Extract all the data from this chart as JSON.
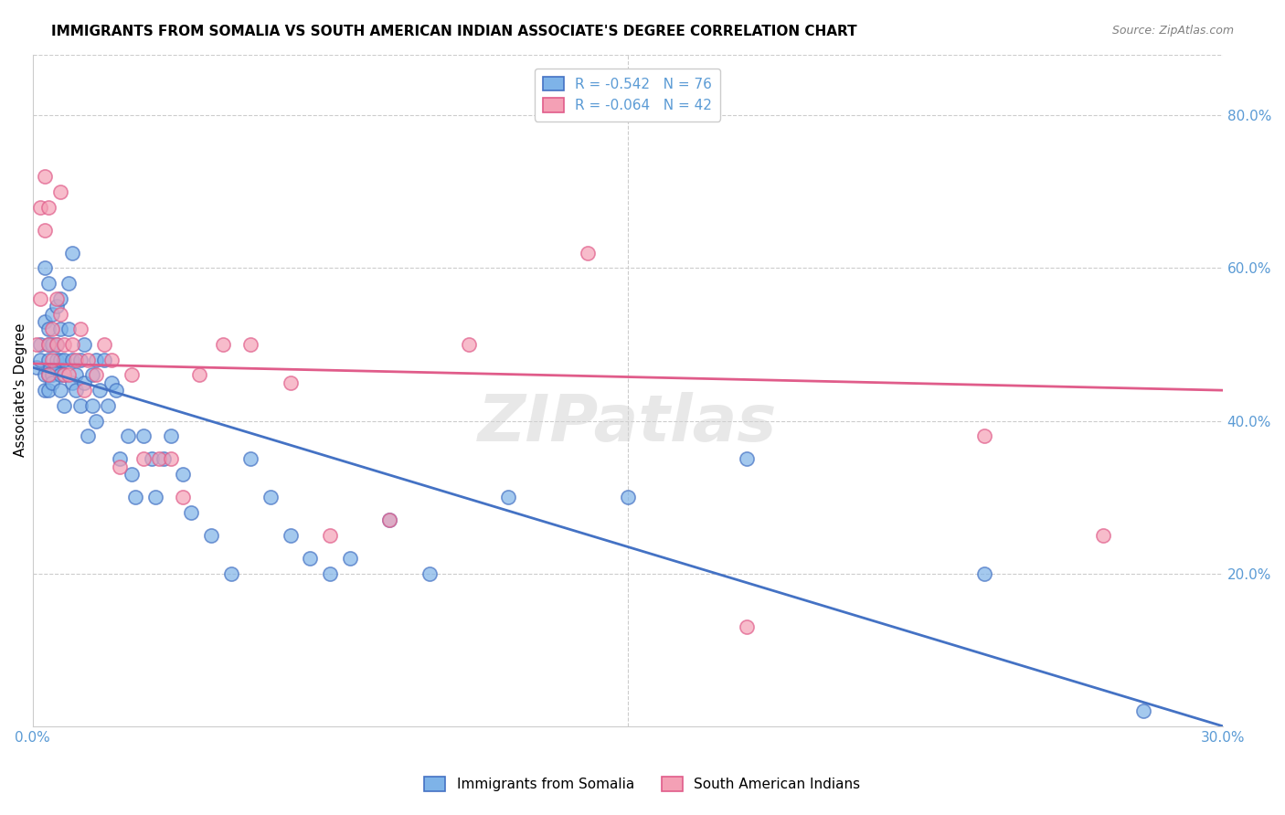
{
  "title": "IMMIGRANTS FROM SOMALIA VS SOUTH AMERICAN INDIAN ASSOCIATE'S DEGREE CORRELATION CHART",
  "source": "Source: ZipAtlas.com",
  "ylabel": "Associate's Degree",
  "xlabel": "",
  "watermark": "ZIPatlas",
  "blue_label": "Immigrants from Somalia",
  "pink_label": "South American Indians",
  "blue_R": -0.542,
  "blue_N": 76,
  "pink_R": -0.064,
  "pink_N": 42,
  "blue_color": "#7EB3E8",
  "pink_color": "#F4A0B5",
  "blue_line_color": "#4472C4",
  "pink_line_color": "#E05C8A",
  "xmin": 0.0,
  "xmax": 0.3,
  "ymin": 0.0,
  "ymax": 0.88,
  "yticks": [
    0.0,
    0.2,
    0.4,
    0.6,
    0.8
  ],
  "ytick_labels": [
    "",
    "20.0%",
    "40.0%",
    "60.0%",
    "80.0%"
  ],
  "xticks": [
    0.0,
    0.05,
    0.1,
    0.15,
    0.2,
    0.25,
    0.3
  ],
  "xtick_labels": [
    "0.0%",
    "",
    "",
    "",
    "",
    "",
    "30.0%"
  ],
  "blue_scatter_x": [
    0.001,
    0.002,
    0.002,
    0.003,
    0.003,
    0.003,
    0.003,
    0.004,
    0.004,
    0.004,
    0.004,
    0.004,
    0.004,
    0.005,
    0.005,
    0.005,
    0.005,
    0.006,
    0.006,
    0.006,
    0.006,
    0.007,
    0.007,
    0.007,
    0.007,
    0.007,
    0.008,
    0.008,
    0.008,
    0.009,
    0.009,
    0.01,
    0.01,
    0.01,
    0.011,
    0.011,
    0.012,
    0.012,
    0.013,
    0.013,
    0.014,
    0.015,
    0.015,
    0.016,
    0.016,
    0.017,
    0.018,
    0.019,
    0.02,
    0.021,
    0.022,
    0.024,
    0.025,
    0.026,
    0.028,
    0.03,
    0.031,
    0.033,
    0.035,
    0.038,
    0.04,
    0.045,
    0.05,
    0.055,
    0.06,
    0.065,
    0.07,
    0.075,
    0.08,
    0.09,
    0.1,
    0.12,
    0.15,
    0.18,
    0.24,
    0.28
  ],
  "blue_scatter_y": [
    0.47,
    0.5,
    0.48,
    0.46,
    0.44,
    0.53,
    0.6,
    0.48,
    0.46,
    0.5,
    0.52,
    0.44,
    0.58,
    0.46,
    0.5,
    0.54,
    0.45,
    0.47,
    0.48,
    0.5,
    0.55,
    0.46,
    0.48,
    0.44,
    0.52,
    0.56,
    0.48,
    0.42,
    0.46,
    0.52,
    0.58,
    0.62,
    0.45,
    0.48,
    0.46,
    0.44,
    0.42,
    0.48,
    0.5,
    0.45,
    0.38,
    0.42,
    0.46,
    0.4,
    0.48,
    0.44,
    0.48,
    0.42,
    0.45,
    0.44,
    0.35,
    0.38,
    0.33,
    0.3,
    0.38,
    0.35,
    0.3,
    0.35,
    0.38,
    0.33,
    0.28,
    0.25,
    0.2,
    0.35,
    0.3,
    0.25,
    0.22,
    0.2,
    0.22,
    0.27,
    0.2,
    0.3,
    0.3,
    0.35,
    0.2,
    0.02
  ],
  "pink_scatter_x": [
    0.001,
    0.002,
    0.002,
    0.003,
    0.003,
    0.004,
    0.004,
    0.004,
    0.005,
    0.005,
    0.006,
    0.006,
    0.007,
    0.007,
    0.008,
    0.008,
    0.009,
    0.01,
    0.011,
    0.012,
    0.013,
    0.014,
    0.016,
    0.018,
    0.02,
    0.022,
    0.025,
    0.028,
    0.032,
    0.035,
    0.038,
    0.042,
    0.048,
    0.055,
    0.065,
    0.075,
    0.09,
    0.11,
    0.14,
    0.18,
    0.24,
    0.27
  ],
  "pink_scatter_y": [
    0.5,
    0.68,
    0.56,
    0.72,
    0.65,
    0.46,
    0.5,
    0.68,
    0.48,
    0.52,
    0.56,
    0.5,
    0.54,
    0.7,
    0.46,
    0.5,
    0.46,
    0.5,
    0.48,
    0.52,
    0.44,
    0.48,
    0.46,
    0.5,
    0.48,
    0.34,
    0.46,
    0.35,
    0.35,
    0.35,
    0.3,
    0.46,
    0.5,
    0.5,
    0.45,
    0.25,
    0.27,
    0.5,
    0.62,
    0.13,
    0.38,
    0.25
  ],
  "blue_trendline": [
    [
      0.0,
      0.47
    ],
    [
      0.3,
      0.0
    ]
  ],
  "pink_trendline": [
    [
      0.0,
      0.475
    ],
    [
      0.3,
      0.44
    ]
  ],
  "grid_color": "#CCCCCC",
  "axis_color": "#5B9BD5",
  "background_color": "#FFFFFF",
  "title_fontsize": 11,
  "label_fontsize": 11,
  "tick_fontsize": 11,
  "legend_fontsize": 11
}
